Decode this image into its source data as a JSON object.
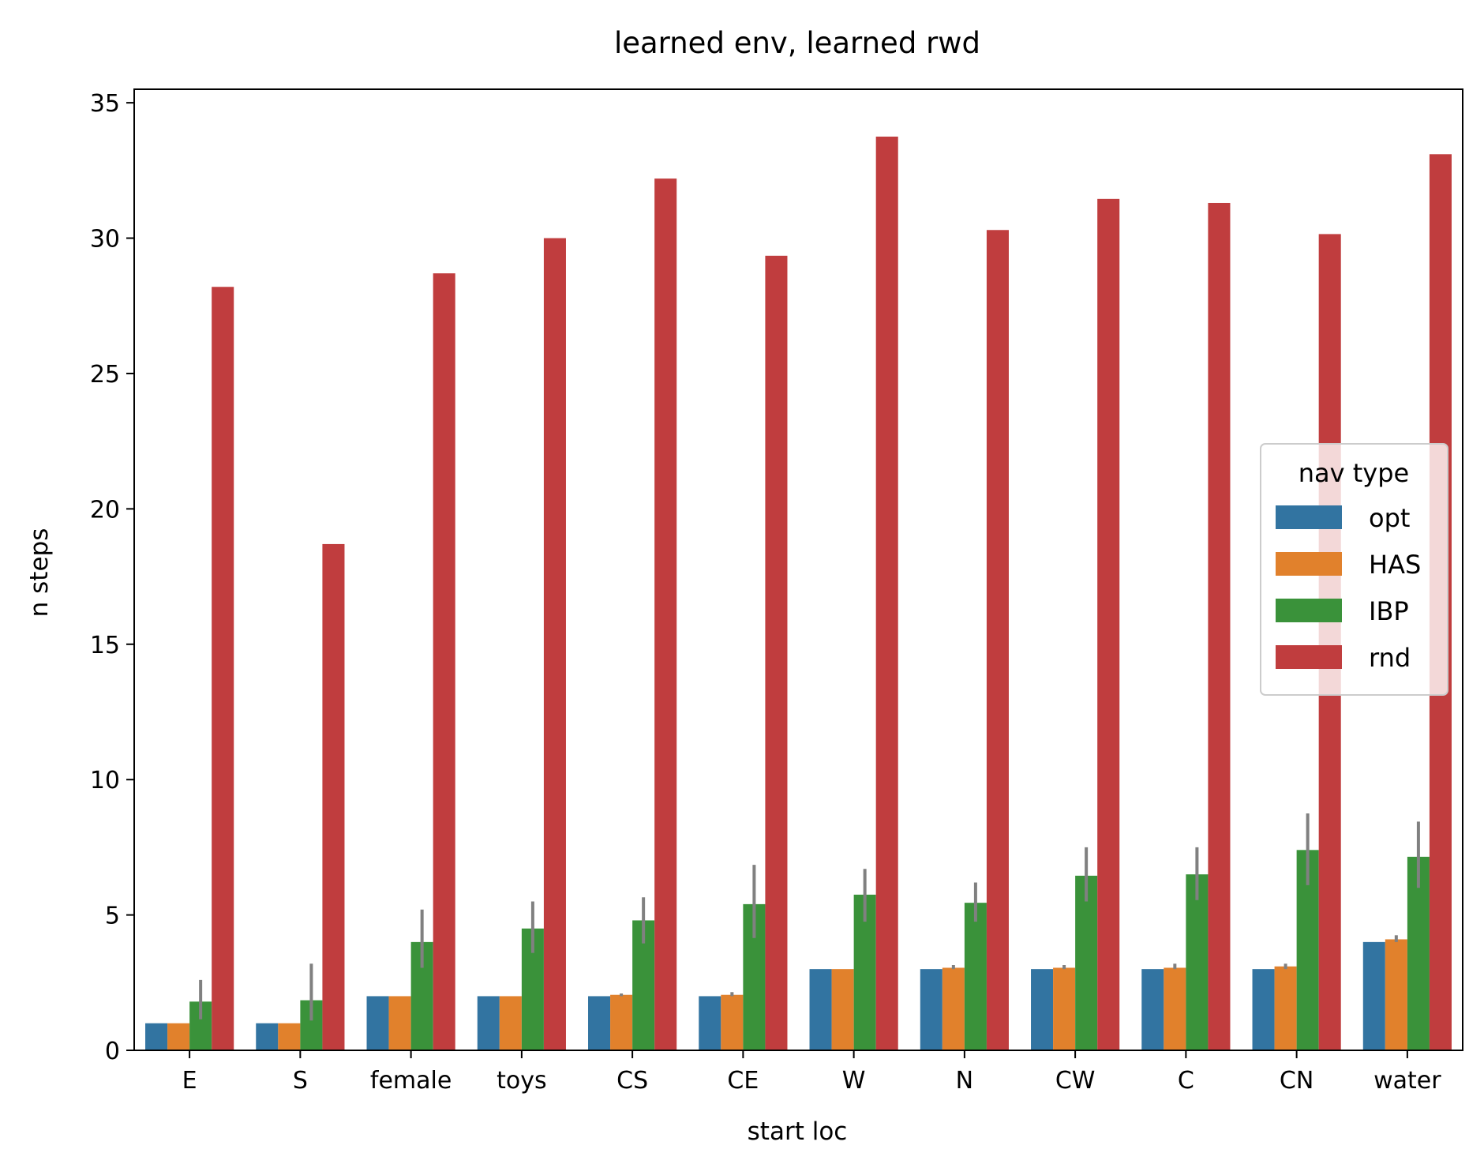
{
  "chart_data": {
    "type": "bar",
    "title": "learned env, learned rwd",
    "xlabel": "start loc",
    "ylabel": "n steps",
    "ylim": [
      0,
      35.5
    ],
    "yticks": [
      0,
      5,
      10,
      15,
      20,
      25,
      30,
      35
    ],
    "categories": [
      "E",
      "S",
      "female",
      "toys",
      "CS",
      "CE",
      "W",
      "N",
      "CW",
      "C",
      "CN",
      "water"
    ],
    "legend": {
      "title": "nav type",
      "placement": "center-right"
    },
    "grid": false,
    "series": [
      {
        "name": "opt",
        "color": "#3274a1",
        "values": [
          1,
          1,
          2,
          2,
          2,
          2,
          3,
          3,
          3,
          3,
          3,
          4
        ],
        "err_low": [
          null,
          null,
          null,
          null,
          null,
          null,
          null,
          null,
          null,
          null,
          null,
          null
        ],
        "err_high": [
          null,
          null,
          null,
          null,
          null,
          null,
          null,
          null,
          null,
          null,
          null,
          null
        ]
      },
      {
        "name": "HAS",
        "color": "#e1812c",
        "values": [
          1,
          1,
          2,
          2,
          2.05,
          2.05,
          3,
          3.05,
          3.05,
          3.05,
          3.1,
          4.1
        ],
        "err_low": [
          null,
          null,
          null,
          null,
          2.0,
          2.0,
          null,
          3.0,
          3.0,
          3.0,
          3.0,
          4.0
        ],
        "err_high": [
          null,
          null,
          null,
          null,
          2.1,
          2.15,
          null,
          3.15,
          3.15,
          3.2,
          3.2,
          4.25
        ]
      },
      {
        "name": "IBP",
        "color": "#3a923a",
        "values": [
          1.8,
          1.85,
          4.0,
          4.5,
          4.8,
          5.4,
          5.75,
          5.45,
          6.45,
          6.5,
          7.4,
          7.15
        ],
        "err_low": [
          1.15,
          1.1,
          3.05,
          3.6,
          3.95,
          4.15,
          4.75,
          4.75,
          5.5,
          5.55,
          6.1,
          6.0
        ],
        "err_high": [
          2.6,
          3.2,
          5.2,
          5.5,
          5.65,
          6.85,
          6.7,
          6.2,
          7.5,
          7.5,
          8.75,
          8.45
        ]
      },
      {
        "name": "rnd",
        "color": "#c03d3e",
        "values": [
          28.2,
          18.7,
          28.7,
          30.0,
          32.2,
          29.35,
          33.75,
          30.3,
          31.45,
          31.3,
          30.15,
          33.1
        ],
        "err_low": [
          null,
          null,
          null,
          null,
          null,
          null,
          null,
          null,
          null,
          null,
          null,
          null
        ],
        "err_high": [
          null,
          null,
          null,
          null,
          null,
          null,
          null,
          null,
          null,
          null,
          null,
          null
        ]
      }
    ]
  }
}
